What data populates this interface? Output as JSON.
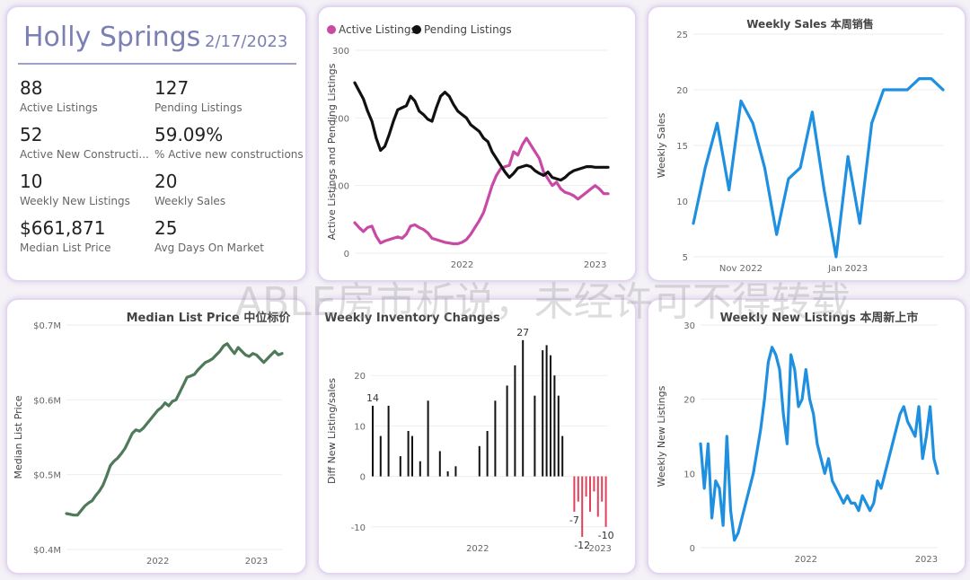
{
  "kpi": {
    "title": "Holly Springs",
    "date": "2/17/2023",
    "items": [
      {
        "value": "88",
        "label": "Active Listings"
      },
      {
        "value": "127",
        "label": "Pending Listings"
      },
      {
        "value": "52",
        "label": "Active New Constructi..."
      },
      {
        "value": "59.09%",
        "label": "% Active new constructions"
      },
      {
        "value": "10",
        "label": "Weekly New Listings"
      },
      {
        "value": "20",
        "label": "Weekly Sales"
      },
      {
        "value": "$661,871",
        "label": "Median List Price"
      },
      {
        "value": "25",
        "label": "Avg Days On Market"
      }
    ]
  },
  "watermark": "ABLE房市析说，未经许可不得转载",
  "chart_data": [
    {
      "type": "line",
      "title": "",
      "xlabel": "",
      "ylabel": "Active Listings and Pending Listings",
      "ylim": [
        0,
        300
      ],
      "yticks": [
        "0",
        "100",
        "200",
        "300"
      ],
      "xticks": [
        {
          "label": "2022",
          "x": 25
        },
        {
          "label": "2023",
          "x": 56
        }
      ],
      "legend": "top-left",
      "colors": {
        "Active Listings": "#c94aa6",
        "Pending Listings": "#111111"
      },
      "series": [
        {
          "name": "Active Listings",
          "x": [
            0,
            1,
            2,
            3,
            4,
            5,
            6,
            7,
            8,
            9,
            10,
            11,
            12,
            13,
            14,
            15,
            16,
            17,
            18,
            19,
            20,
            21,
            22,
            23,
            24,
            25,
            26,
            27,
            28,
            29,
            30,
            31,
            32,
            33,
            34,
            35,
            36,
            37,
            38,
            39,
            40,
            41,
            42,
            43,
            44,
            45,
            46,
            47,
            48,
            49,
            50,
            51,
            52,
            53,
            54,
            55,
            56,
            57,
            58,
            59
          ],
          "values": [
            45,
            38,
            32,
            38,
            40,
            25,
            15,
            18,
            20,
            22,
            24,
            22,
            28,
            40,
            42,
            38,
            35,
            30,
            22,
            20,
            18,
            16,
            15,
            14,
            14,
            16,
            20,
            28,
            38,
            48,
            60,
            80,
            100,
            115,
            125,
            128,
            130,
            150,
            145,
            160,
            170,
            160,
            150,
            140,
            120,
            110,
            100,
            105,
            95,
            90,
            88,
            85,
            80,
            85,
            90,
            95,
            100,
            95,
            88,
            88
          ]
        },
        {
          "name": "Pending Listings",
          "x": [
            0,
            1,
            2,
            3,
            4,
            5,
            6,
            7,
            8,
            9,
            10,
            11,
            12,
            13,
            14,
            15,
            16,
            17,
            18,
            19,
            20,
            21,
            22,
            23,
            24,
            25,
            26,
            27,
            28,
            29,
            30,
            31,
            32,
            33,
            34,
            35,
            36,
            37,
            38,
            39,
            40,
            41,
            42,
            43,
            44,
            45,
            46,
            47,
            48,
            49,
            50,
            51,
            52,
            53,
            54,
            55,
            56,
            57,
            58,
            59
          ],
          "values": [
            252,
            240,
            228,
            210,
            195,
            170,
            152,
            158,
            175,
            195,
            212,
            215,
            218,
            232,
            225,
            210,
            205,
            198,
            195,
            215,
            232,
            238,
            232,
            220,
            210,
            205,
            200,
            190,
            185,
            180,
            170,
            165,
            150,
            140,
            130,
            120,
            112,
            118,
            126,
            128,
            130,
            128,
            122,
            118,
            115,
            120,
            112,
            110,
            108,
            112,
            118,
            122,
            124,
            126,
            128,
            128,
            127,
            127,
            127,
            127
          ]
        }
      ]
    },
    {
      "type": "line",
      "title": "Weekly Sales 本周销售",
      "xlabel": "",
      "ylabel": "Weekly Sales",
      "ylim": [
        5,
        25
      ],
      "yticks": [
        "5",
        "10",
        "15",
        "20",
        "25"
      ],
      "xticks": [
        {
          "label": "Nov 2022",
          "x": 4
        },
        {
          "label": "Jan 2023",
          "x": 13
        }
      ],
      "color": "#1f8fe0",
      "series": [
        {
          "name": "Weekly Sales",
          "x": [
            0,
            1,
            2,
            3,
            4,
            5,
            6,
            7,
            8,
            9,
            10,
            11,
            12,
            13,
            14,
            15,
            16,
            17,
            18,
            19,
            20,
            21
          ],
          "values": [
            8,
            13,
            17,
            11,
            19,
            17,
            13,
            7,
            12,
            13,
            18,
            11,
            5,
            14,
            8,
            17,
            20,
            20,
            20,
            21,
            21,
            20
          ]
        }
      ]
    },
    {
      "type": "line",
      "title": "Median List Price 中位标价",
      "xlabel": "",
      "ylabel": "Median List Price",
      "ylim": [
        0.4,
        0.7
      ],
      "yticks": [
        "$0.4M",
        "$0.5M",
        "$0.6M",
        "$0.7M"
      ],
      "xticks": [
        {
          "label": "2022",
          "x": 25
        },
        {
          "label": "2023",
          "x": 52
        }
      ],
      "color": "#4e7a5a",
      "series": [
        {
          "name": "Median List Price",
          "x": [
            0,
            1,
            2,
            3,
            4,
            5,
            6,
            7,
            8,
            9,
            10,
            11,
            12,
            13,
            14,
            15,
            16,
            17,
            18,
            19,
            20,
            21,
            22,
            23,
            24,
            25,
            26,
            27,
            28,
            29,
            30,
            31,
            32,
            33,
            34,
            35,
            36,
            37,
            38,
            39,
            40,
            41,
            42,
            43,
            44,
            45,
            46,
            47,
            48,
            49,
            50,
            51,
            52,
            53,
            54,
            55,
            56,
            57,
            58,
            59
          ],
          "values": [
            0.448,
            0.447,
            0.446,
            0.446,
            0.452,
            0.458,
            0.462,
            0.465,
            0.472,
            0.478,
            0.486,
            0.498,
            0.512,
            0.518,
            0.522,
            0.528,
            0.535,
            0.545,
            0.555,
            0.56,
            0.558,
            0.562,
            0.568,
            0.574,
            0.58,
            0.586,
            0.59,
            0.596,
            0.592,
            0.598,
            0.6,
            0.61,
            0.62,
            0.63,
            0.632,
            0.634,
            0.64,
            0.645,
            0.65,
            0.652,
            0.655,
            0.66,
            0.665,
            0.672,
            0.675,
            0.668,
            0.662,
            0.67,
            0.665,
            0.66,
            0.658,
            0.662,
            0.66,
            0.655,
            0.65,
            0.655,
            0.66,
            0.665,
            0.66,
            0.662
          ]
        }
      ]
    },
    {
      "type": "bar",
      "title": "Weekly Inventory Changes",
      "xlabel": "",
      "ylabel": "Diff New Listing/sales",
      "ylim": [
        -12,
        30
      ],
      "yticks": [
        "-10",
        "0",
        "10",
        "20"
      ],
      "xticks": [
        {
          "label": "2022",
          "x": 27
        },
        {
          "label": "2023",
          "x": 58
        }
      ],
      "colors": {
        "positive": "#111111",
        "negative": "#e0405a"
      },
      "data_labels": {
        "14": 14,
        "27": 27,
        "-7": -7,
        "-12": -12,
        "-10": -10
      },
      "x": [
        0,
        1,
        2,
        3,
        4,
        5,
        6,
        7,
        8,
        9,
        10,
        11,
        12,
        13,
        14,
        15,
        16,
        17,
        18,
        19,
        20,
        21,
        22,
        23,
        24,
        25,
        26,
        27,
        28,
        29,
        30,
        31,
        32,
        33,
        34,
        35,
        36,
        37,
        38,
        39,
        40,
        41,
        42,
        43,
        44,
        45,
        46,
        47,
        48,
        49,
        50,
        51,
        52,
        53,
        54,
        55,
        56,
        57,
        58,
        59
      ],
      "values": [
        14,
        0,
        8,
        0,
        14,
        0,
        0,
        4,
        0,
        9,
        8,
        0,
        3,
        0,
        15,
        0,
        0,
        5,
        0,
        1,
        0,
        2,
        0,
        0,
        0,
        0,
        0,
        6,
        0,
        9,
        0,
        15,
        0,
        0,
        18,
        0,
        22,
        0,
        27,
        0,
        0,
        16,
        0,
        25,
        26,
        24,
        20,
        16,
        8,
        0,
        0,
        -7,
        -5,
        -12,
        -4,
        -7,
        -3,
        -8,
        -5,
        -10
      ]
    },
    {
      "type": "line",
      "title": "Weekly New Listings 本周新上市",
      "xlabel": "",
      "ylabel": "Weekly New Listings",
      "ylim": [
        0,
        30
      ],
      "yticks": [
        "0",
        "10",
        "20",
        "30"
      ],
      "xticks": [
        {
          "label": "2022",
          "x": 28
        },
        {
          "label": "2023",
          "x": 60
        }
      ],
      "color": "#1f8fe0",
      "series": [
        {
          "name": "Weekly New Listings",
          "x": [
            0,
            1,
            2,
            3,
            4,
            5,
            6,
            7,
            8,
            9,
            10,
            11,
            12,
            13,
            14,
            15,
            16,
            17,
            18,
            19,
            20,
            21,
            22,
            23,
            24,
            25,
            26,
            27,
            28,
            29,
            30,
            31,
            32,
            33,
            34,
            35,
            36,
            37,
            38,
            39,
            40,
            41,
            42,
            43,
            44,
            45,
            46,
            47,
            48,
            49,
            50,
            51,
            52,
            53,
            54,
            55,
            56,
            57,
            58,
            59,
            60,
            61,
            62,
            63
          ],
          "values": [
            14,
            8,
            14,
            4,
            9,
            8,
            3,
            15,
            5,
            1,
            2,
            4,
            6,
            8,
            10,
            13,
            16,
            20,
            25,
            27,
            26,
            24,
            18,
            14,
            26,
            24,
            19,
            20,
            24,
            20,
            18,
            14,
            12,
            10,
            12,
            9,
            8,
            7,
            6,
            7,
            6,
            6,
            5,
            7,
            6,
            5,
            6,
            9,
            8,
            10,
            12,
            14,
            16,
            18,
            19,
            17,
            16,
            15,
            19,
            12,
            15,
            19,
            12,
            10
          ]
        }
      ]
    }
  ]
}
